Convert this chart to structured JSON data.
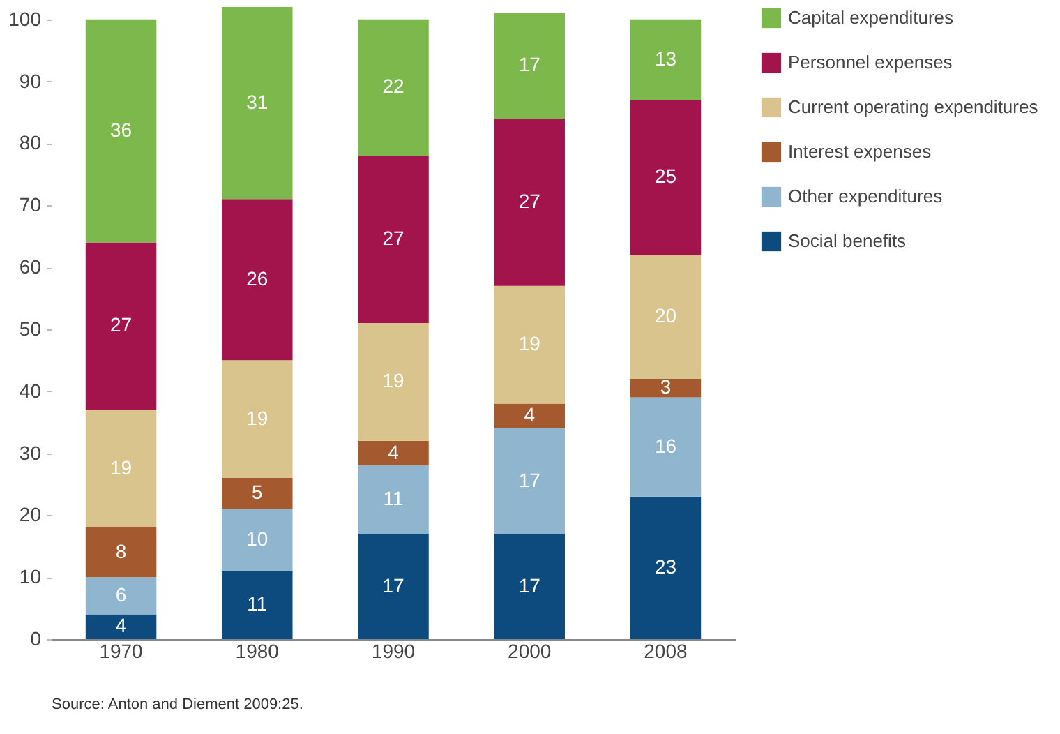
{
  "chart_data": {
    "type": "bar",
    "stacked": true,
    "categories": [
      "1970",
      "1980",
      "1990",
      "2000",
      "2008"
    ],
    "series": [
      {
        "name": "Social benefits",
        "color": "#0d4a7e",
        "values": [
          4,
          11,
          17,
          17,
          23
        ]
      },
      {
        "name": "Other expenditures",
        "color": "#8fb5cf",
        "values": [
          6,
          10,
          11,
          17,
          16
        ]
      },
      {
        "name": "Interest expenses",
        "color": "#a5592f",
        "values": [
          8,
          5,
          4,
          4,
          3
        ]
      },
      {
        "name": "Current operating expenditures",
        "color": "#d8c48c",
        "values": [
          19,
          19,
          19,
          19,
          20
        ]
      },
      {
        "name": "Personnel expenses",
        "color": "#a3134c",
        "values": [
          27,
          26,
          27,
          27,
          25
        ]
      },
      {
        "name": "Capital expenditures",
        "color": "#7db84c",
        "values": [
          36,
          31,
          22,
          17,
          13
        ]
      }
    ],
    "ylim": [
      0,
      102
    ],
    "yticks": [
      0,
      10,
      20,
      30,
      40,
      50,
      60,
      70,
      80,
      90,
      100
    ],
    "grid": false,
    "legend": "right",
    "data_labels": true,
    "annotations": [
      "Source: Anton and Diement 2009:25."
    ]
  }
}
